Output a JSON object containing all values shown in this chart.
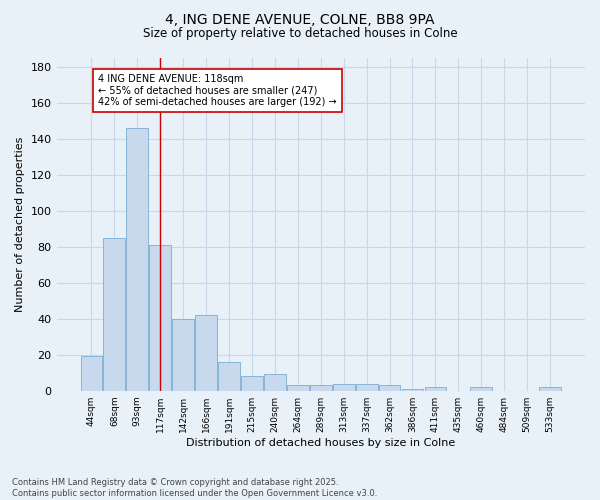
{
  "title": "4, ING DENE AVENUE, COLNE, BB8 9PA",
  "subtitle": "Size of property relative to detached houses in Colne",
  "xlabel": "Distribution of detached houses by size in Colne",
  "ylabel": "Number of detached properties",
  "categories": [
    "44sqm",
    "68sqm",
    "93sqm",
    "117sqm",
    "142sqm",
    "166sqm",
    "191sqm",
    "215sqm",
    "240sqm",
    "264sqm",
    "289sqm",
    "313sqm",
    "337sqm",
    "362sqm",
    "386sqm",
    "411sqm",
    "435sqm",
    "460sqm",
    "484sqm",
    "509sqm",
    "533sqm"
  ],
  "values": [
    19,
    85,
    146,
    81,
    40,
    42,
    16,
    8,
    9,
    3,
    3,
    4,
    4,
    3,
    1,
    2,
    0,
    2,
    0,
    0,
    2
  ],
  "bar_color": "#c8d9ee",
  "bar_edge_color": "#7aadd4",
  "grid_color": "#c8d8ea",
  "background_color": "#e8f1f8",
  "vline_x": 3,
  "vline_color": "#cc0000",
  "annotation_line1": "4 ING DENE AVENUE: 118sqm",
  "annotation_line2": "← 55% of detached houses are smaller (247)",
  "annotation_line3": "42% of semi-detached houses are larger (192) →",
  "annotation_box_color": "white",
  "annotation_box_edge": "#cc0000",
  "footer": "Contains HM Land Registry data © Crown copyright and database right 2025.\nContains public sector information licensed under the Open Government Licence v3.0.",
  "ylim": [
    0,
    185
  ],
  "yticks": [
    0,
    20,
    40,
    60,
    80,
    100,
    120,
    140,
    160,
    180
  ]
}
